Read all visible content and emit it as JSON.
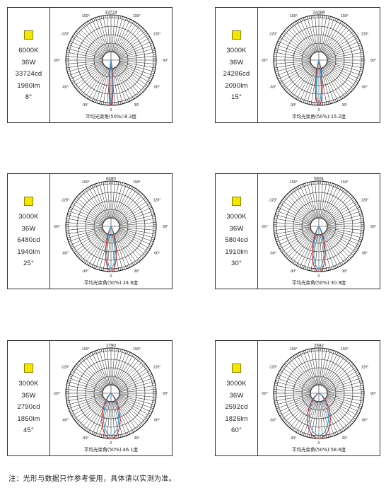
{
  "panels": [
    {
      "color_temp": "6000K",
      "power": "36W",
      "intensity": "33724cd",
      "flux": "1980lm",
      "beam": "8°",
      "peak": "33724",
      "caption": "平均光束角(50%):8.3度",
      "cyan_half": 3.5,
      "red_half": 5
    },
    {
      "color_temp": "3000K",
      "power": "36W",
      "intensity": "24286cd",
      "flux": "2090lm",
      "beam": "15°",
      "peak": "24286",
      "caption": "平均光束角(50%):15.2度",
      "cyan_half": 6.5,
      "red_half": 8.5
    },
    {
      "color_temp": "3000K",
      "power": "36W",
      "intensity": "6480cd",
      "flux": "1940lm",
      "beam": "25°",
      "peak": "6480",
      "caption": "平均光束角(50%):24.6度",
      "cyan_half": 10.5,
      "red_half": 13
    },
    {
      "color_temp": "3000K",
      "power": "36W",
      "intensity": "5804cd",
      "flux": "1910lm",
      "beam": "30°",
      "peak": "5804",
      "caption": "平均光束角(50%):30.9度",
      "cyan_half": 13.5,
      "red_half": 16
    },
    {
      "color_temp": "3000K",
      "power": "36W",
      "intensity": "2790cd",
      "flux": "1850lm",
      "beam": "45°",
      "peak": "2790",
      "caption": "平均光束角(50%):46.1度",
      "cyan_half": 20,
      "red_half": 23
    },
    {
      "color_temp": "3000K",
      "power": "36W",
      "intensity": "2592cd",
      "flux": "1826lm",
      "beam": "60°",
      "peak": "2592",
      "caption": "平均光束角(50%):58.6度",
      "cyan_half": 26,
      "red_half": 29
    }
  ],
  "angle_labels": [
    "-150°",
    "150°",
    "-120°",
    "120°",
    "-90°",
    "90°",
    "-60°",
    "60°",
    "-30°",
    "30°",
    "0"
  ],
  "colors": {
    "swatch": "#f3e600",
    "curve_a": "#d62020",
    "curve_b": "#2a9fd6",
    "grid": "#1a1a1a"
  },
  "note": "注：光形与数据只作参考使用，具体请以实测为准。"
}
